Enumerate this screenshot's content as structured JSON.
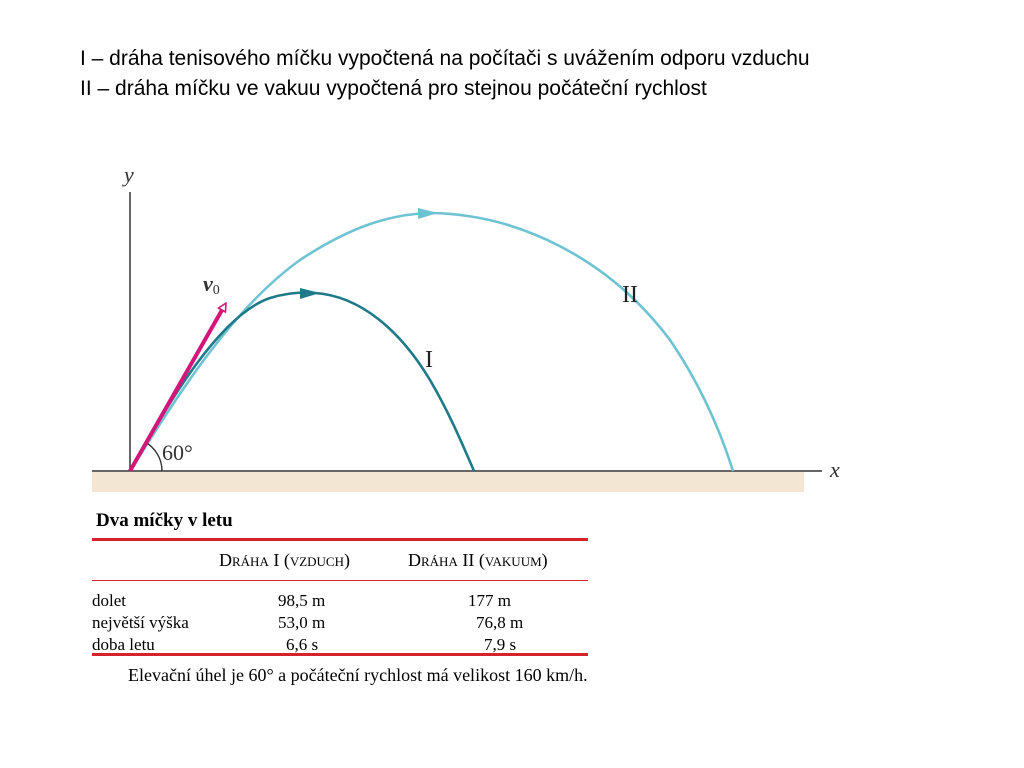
{
  "caption": {
    "line1": "I – dráha tenisového míčku vypočtená na počítači s uvážením odporu vzduchu",
    "line2": "II – dráha míčku ve vakuu vypočtená pro stejnou počáteční rychlost"
  },
  "diagram": {
    "axis_y_label": "y",
    "axis_x_label": "x",
    "velocity_label": "v",
    "velocity_subscript": "0",
    "angle_label": "60°",
    "curve_I_label": "I",
    "curve_II_label": "II",
    "colors": {
      "curve_I": "#1e7a88",
      "curve_II": "#6ec3d3",
      "velocity_arrow": "#d4157a",
      "ground": "#f3e6d2",
      "table_rule": "#d4232a"
    }
  },
  "table": {
    "title": "Dva míčky v letu",
    "col1_header": "Dráha I (vzduch)",
    "col2_header": "Dráha II (vakuum)",
    "rows": [
      {
        "label": "dolet",
        "v1": "98,5 m",
        "v2": "177 m"
      },
      {
        "label": "největší výška",
        "v1": "53,0 m",
        "v2": "76,8 m"
      },
      {
        "label": "doba letu",
        "v1": "6,6 s",
        "v2": "7,9 s"
      }
    ],
    "note": "Elevační úhel je 60° a počáteční rychlost má velikost 160 km/h."
  }
}
